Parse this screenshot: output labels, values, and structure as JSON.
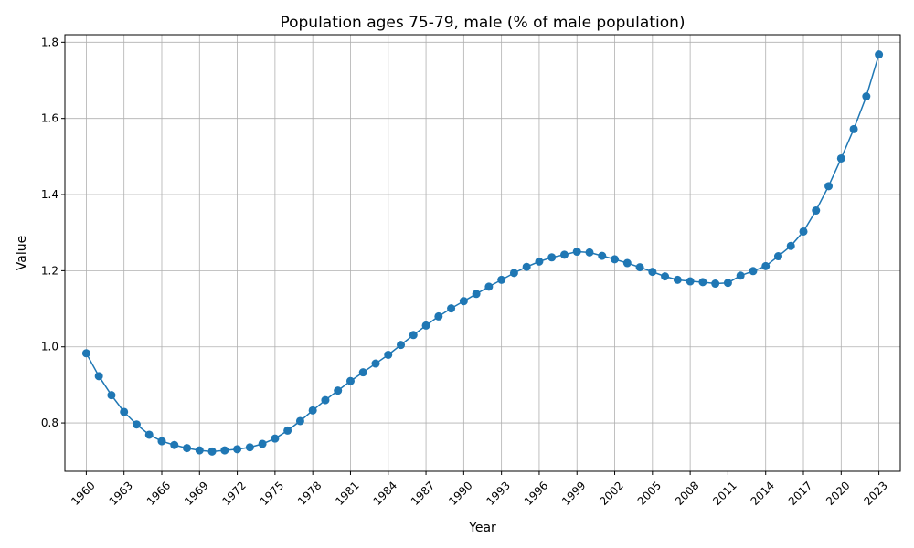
{
  "chart_data": {
    "type": "line",
    "title": "Population ages 75-79, male (% of male population)",
    "xlabel": "Year",
    "ylabel": "Value",
    "xlim": [
      1958.3,
      2024.7
    ],
    "ylim": [
      0.673,
      1.82
    ],
    "xticks": [
      1960,
      1963,
      1966,
      1969,
      1972,
      1975,
      1978,
      1981,
      1984,
      1987,
      1990,
      1993,
      1996,
      1999,
      2002,
      2005,
      2008,
      2011,
      2014,
      2017,
      2020,
      2023
    ],
    "yticks": [
      0.8,
      1.0,
      1.2,
      1.4,
      1.6,
      1.8
    ],
    "ytick_labels": [
      "0.8",
      "1.0",
      "1.2",
      "1.4",
      "1.6",
      "1.8"
    ],
    "grid": true,
    "color": "#1f77b4",
    "x": [
      1960,
      1961,
      1962,
      1963,
      1964,
      1965,
      1966,
      1967,
      1968,
      1969,
      1970,
      1971,
      1972,
      1973,
      1974,
      1975,
      1976,
      1977,
      1978,
      1979,
      1980,
      1981,
      1982,
      1983,
      1984,
      1985,
      1986,
      1987,
      1988,
      1989,
      1990,
      1991,
      1992,
      1993,
      1994,
      1995,
      1996,
      1997,
      1998,
      1999,
      2000,
      2001,
      2002,
      2003,
      2004,
      2005,
      2006,
      2007,
      2008,
      2009,
      2010,
      2011,
      2012,
      2013,
      2014,
      2015,
      2016,
      2017,
      2018,
      2019,
      2020,
      2021,
      2022,
      2023
    ],
    "y": [
      0.983,
      0.923,
      0.873,
      0.829,
      0.796,
      0.769,
      0.752,
      0.742,
      0.734,
      0.728,
      0.725,
      0.728,
      0.731,
      0.736,
      0.745,
      0.759,
      0.78,
      0.805,
      0.833,
      0.86,
      0.885,
      0.91,
      0.933,
      0.956,
      0.979,
      1.005,
      1.031,
      1.056,
      1.08,
      1.101,
      1.12,
      1.139,
      1.158,
      1.176,
      1.194,
      1.21,
      1.224,
      1.235,
      1.242,
      1.25,
      1.248,
      1.239,
      1.23,
      1.22,
      1.209,
      1.197,
      1.185,
      1.176,
      1.172,
      1.17,
      1.166,
      1.168,
      1.187,
      1.199,
      1.212,
      1.238,
      1.265,
      1.303,
      1.358,
      1.422,
      1.495,
      1.572,
      1.658,
      1.768
    ]
  }
}
